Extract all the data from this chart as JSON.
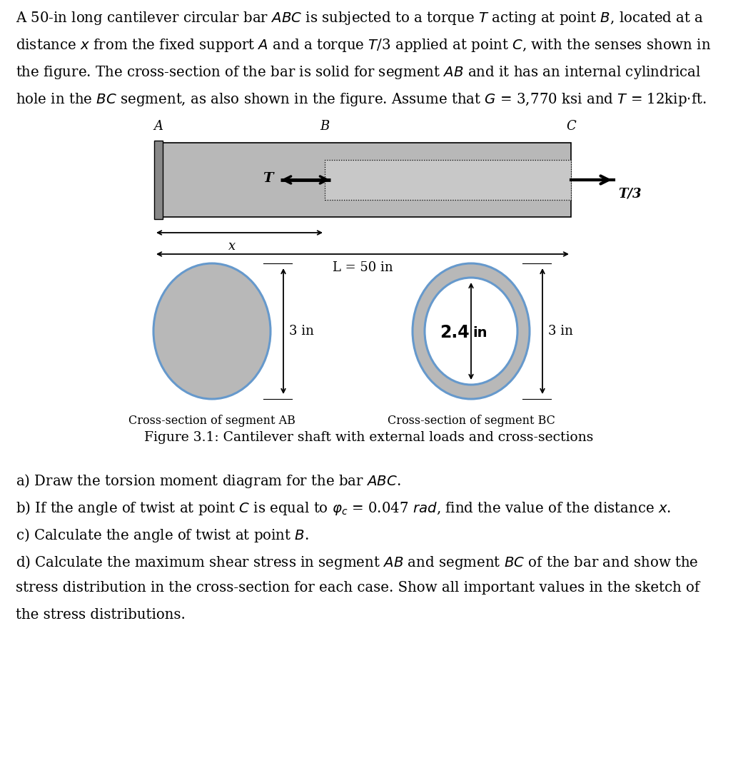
{
  "bg_color": "#ffffff",
  "text_color": "#000000",
  "bar_fill_color": "#b8b8b8",
  "bar_fill_light": "#c8c8c8",
  "circle_fill_color": "#b8b8b8",
  "circle_outline_color": "#6699cc",
  "wall_color": "#888888",
  "para_lines": [
    "A 50-in long cantilever circular bar $\\it{ABC}$ is subjected to a torque $\\it{T}$ acting at point $\\it{B}$, located at a",
    "distance $\\it{x}$ from the fixed support $\\it{A}$ and a torque $\\it{T}$/3 applied at point $\\it{C}$, with the senses shown in",
    "the figure. The cross-section of the bar is solid for segment $\\it{AB}$ and it has an internal cylindrical",
    "hole in the $\\it{BC}$ segment, as also shown in the figure. Assume that $G$ = 3,770 ksi and $T$ = 12kip$\\cdot$ft."
  ],
  "fig_caption": "Figure 3.1: Cantilever shaft with external loads and cross-sections",
  "q_lines": [
    "a) Draw the torsion moment diagram for the bar $\\it{ABC}$.",
    "b) If the angle of twist at point $\\it{C}$ is equal to $\\varphi_c$ = 0.047 $\\it{rad}$, find the value of the distance $\\it{x}$.",
    "c) Calculate the angle of twist at point $\\it{B}$.",
    "d) Calculate the maximum shear stress in segment $\\it{AB}$ and segment $\\it{BC}$ of the bar and show the",
    "stress distribution in the cross-section for each case. Show all important values in the sketch of",
    "the stress distributions."
  ],
  "shaft_label_A": "A",
  "shaft_label_B": "B",
  "shaft_label_C": "C",
  "torque_T": "T",
  "torque_T3": "T/3",
  "dim_x": "x",
  "dim_L": "L = 50 in",
  "dim_3in_AB": "3 in",
  "dim_2p4in": "2.4",
  "dim_in": "in",
  "dim_3in_BC": "3 in",
  "cs_AB": "Cross-section of segment AB",
  "cs_BC": "Cross-section of segment BC"
}
